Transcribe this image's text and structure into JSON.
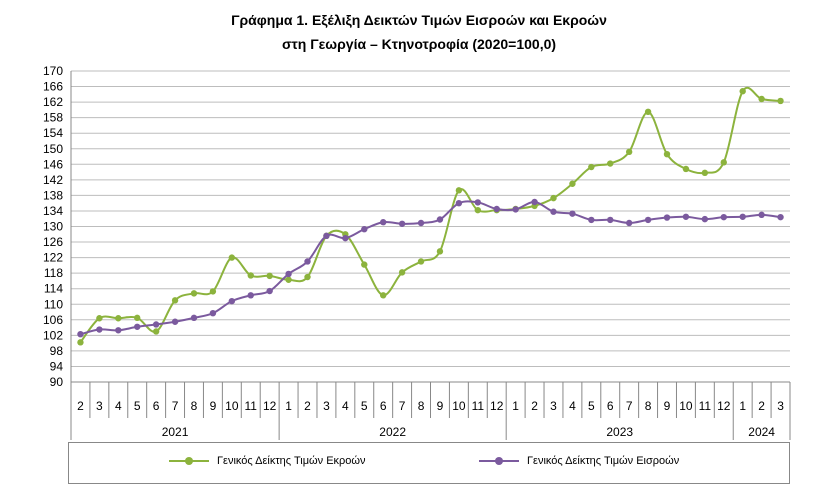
{
  "title_line1": "Γράφημα 1. Εξέλιξη Δεικτών Τιμών Εισροών και Εκροών",
  "title_line2": "στη Γεωργία – Κτηνοτροφία (2020=100,0)",
  "chart_data": {
    "type": "line",
    "ylim": [
      90,
      170
    ],
    "yticks": [
      90,
      94,
      98,
      102,
      106,
      110,
      114,
      118,
      122,
      126,
      130,
      134,
      138,
      142,
      146,
      150,
      154,
      158,
      162,
      166,
      170
    ],
    "x": [
      "2",
      "3",
      "4",
      "5",
      "6",
      "7",
      "8",
      "9",
      "10",
      "11",
      "12",
      "1",
      "2",
      "3",
      "4",
      "5",
      "6",
      "7",
      "8",
      "9",
      "10",
      "11",
      "12",
      "1",
      "2",
      "3",
      "4",
      "5",
      "6",
      "7",
      "8",
      "9",
      "10",
      "11",
      "12",
      "1",
      "2",
      "3"
    ],
    "years": [
      {
        "label": "2021",
        "start": 0,
        "end": 10
      },
      {
        "label": "2022",
        "start": 11,
        "end": 22
      },
      {
        "label": "2023",
        "start": 23,
        "end": 34
      },
      {
        "label": "2024",
        "start": 35,
        "end": 37
      }
    ],
    "grid": true,
    "legend_position": "bottom",
    "series": [
      {
        "name": "Γενικός Δείκτης Τιμών Εκροών",
        "color": "#8cb33d",
        "values": [
          100.2,
          106.4,
          106.4,
          106.5,
          103.0,
          111.0,
          112.8,
          113.3,
          122.0,
          117.4,
          117.3,
          116.3,
          117.0,
          127.6,
          128.0,
          120.2,
          112.3,
          118.2,
          121.0,
          123.6,
          139.3,
          134.2,
          134.2,
          134.5,
          135.3,
          137.3,
          141.0,
          145.3,
          146.2,
          149.2,
          159.5,
          148.6,
          144.8,
          143.8,
          146.5,
          164.8,
          162.8,
          162.3
        ]
      },
      {
        "name": "Γενικός Δείκτης Τιμών Εισροών",
        "color": "#7b5a9e",
        "values": [
          102.3,
          103.5,
          103.3,
          104.2,
          104.8,
          105.5,
          106.5,
          107.7,
          110.8,
          112.3,
          113.4,
          117.8,
          121.0,
          127.6,
          127.0,
          129.3,
          131.1,
          130.7,
          130.9,
          131.8,
          136.0,
          136.2,
          134.5,
          134.4,
          136.3,
          133.8,
          133.3,
          131.7,
          131.7,
          130.9,
          131.7,
          132.3,
          132.5,
          131.9,
          132.4,
          132.5,
          133.0,
          132.4
        ]
      }
    ]
  }
}
